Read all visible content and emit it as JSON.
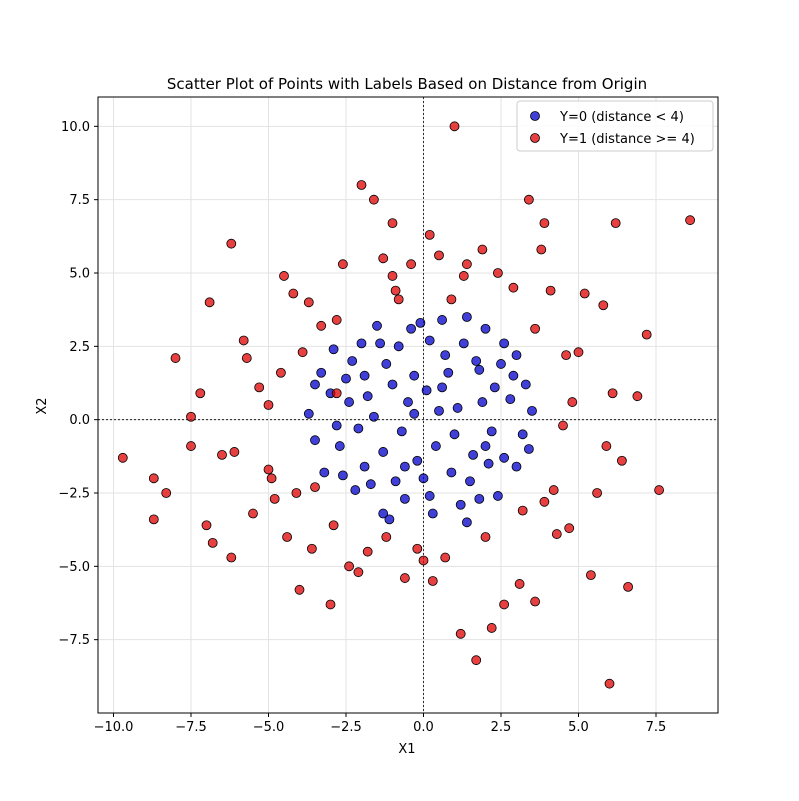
{
  "chart_data": {
    "type": "scatter",
    "title": "Scatter Plot of Points with Labels Based on Distance from Origin",
    "xlabel": "X1",
    "ylabel": "X2",
    "xlim": [
      -10.5,
      9.5
    ],
    "ylim": [
      -10,
      11
    ],
    "xticks": [
      -10.0,
      -7.5,
      -5.0,
      -2.5,
      0.0,
      2.5,
      5.0,
      7.5
    ],
    "xtick_labels": [
      "−10.0",
      "−7.5",
      "−5.0",
      "−2.5",
      "0.0",
      "2.5",
      "5.0",
      "7.5"
    ],
    "yticks": [
      -7.5,
      -5.0,
      -2.5,
      0.0,
      2.5,
      5.0,
      7.5,
      10.0
    ],
    "ytick_labels": [
      "−7.5",
      "−5.0",
      "−2.5",
      "0.0",
      "2.5",
      "5.0",
      "7.5",
      "10.0"
    ],
    "grid": true,
    "reference_lines": {
      "x": 0,
      "y": 0
    },
    "legend_position": "top-right",
    "series": [
      {
        "name": "Y=0 (distance < 4)",
        "color": "#0000cc",
        "points": [
          [
            -2.9,
            2.4
          ],
          [
            -3.5,
            1.2
          ],
          [
            -2.0,
            2.6
          ],
          [
            -1.5,
            3.2
          ],
          [
            -0.4,
            3.1
          ],
          [
            0.6,
            3.4
          ],
          [
            1.4,
            3.5
          ],
          [
            2.0,
            3.1
          ],
          [
            2.6,
            2.6
          ],
          [
            3.0,
            2.2
          ],
          [
            3.3,
            1.2
          ],
          [
            3.5,
            0.3
          ],
          [
            3.2,
            -0.5
          ],
          [
            3.0,
            -1.6
          ],
          [
            2.4,
            -2.6
          ],
          [
            1.8,
            -2.7
          ],
          [
            1.4,
            -3.5
          ],
          [
            0.3,
            -3.2
          ],
          [
            -0.6,
            -2.7
          ],
          [
            -1.3,
            -3.2
          ],
          [
            -2.2,
            -2.4
          ],
          [
            -3.2,
            -1.8
          ],
          [
            -3.5,
            -0.7
          ],
          [
            -3.7,
            0.2
          ],
          [
            -2.5,
            1.4
          ],
          [
            -1.8,
            0.8
          ],
          [
            -1.2,
            1.9
          ],
          [
            -0.8,
            2.5
          ],
          [
            -0.3,
            1.5
          ],
          [
            0.2,
            2.7
          ],
          [
            0.8,
            1.6
          ],
          [
            1.3,
            2.6
          ],
          [
            1.8,
            1.7
          ],
          [
            2.3,
            1.1
          ],
          [
            2.8,
            0.7
          ],
          [
            2.2,
            -0.4
          ],
          [
            1.6,
            -1.2
          ],
          [
            1.0,
            -0.5
          ],
          [
            0.5,
            0.3
          ],
          [
            0.1,
            1.0
          ],
          [
            -0.5,
            0.6
          ],
          [
            -1.0,
            1.2
          ],
          [
            -1.6,
            0.1
          ],
          [
            -2.1,
            -0.3
          ],
          [
            -2.7,
            -0.9
          ],
          [
            -1.9,
            -1.6
          ],
          [
            -1.3,
            -1.1
          ],
          [
            -0.7,
            -0.4
          ],
          [
            -0.2,
            -1.4
          ],
          [
            0.4,
            -0.9
          ],
          [
            0.9,
            -1.8
          ],
          [
            1.5,
            -2.1
          ],
          [
            2.1,
            -1.5
          ],
          [
            2.6,
            -1.3
          ],
          [
            -0.9,
            -2.1
          ],
          [
            -1.7,
            -2.2
          ],
          [
            -2.4,
            0.6
          ],
          [
            -3.0,
            0.9
          ],
          [
            -2.3,
            2.0
          ],
          [
            1.1,
            0.4
          ],
          [
            1.9,
            0.6
          ],
          [
            2.5,
            1.9
          ],
          [
            0.0,
            -2.0
          ],
          [
            -0.3,
            0.2
          ],
          [
            0.7,
            2.2
          ],
          [
            -1.4,
            2.6
          ],
          [
            -2.8,
            -0.2
          ],
          [
            3.4,
            -1.0
          ],
          [
            2.9,
            1.5
          ],
          [
            -3.3,
            1.6
          ],
          [
            0.2,
            -2.6
          ],
          [
            1.2,
            -2.9
          ],
          [
            -1.1,
            -3.4
          ],
          [
            -0.1,
            3.3
          ],
          [
            1.7,
            2.0
          ],
          [
            -2.6,
            -1.9
          ],
          [
            2.0,
            -0.9
          ],
          [
            -0.6,
            -1.6
          ],
          [
            0.6,
            1.1
          ],
          [
            -1.9,
            1.5
          ]
        ]
      },
      {
        "name": "Y=1 (distance >= 4)",
        "color": "#dd0000",
        "points": [
          [
            -9.7,
            -1.3
          ],
          [
            -8.7,
            -3.4
          ],
          [
            -8.3,
            -2.5
          ],
          [
            -8.0,
            2.1
          ],
          [
            -7.5,
            -0.9
          ],
          [
            -7.2,
            0.9
          ],
          [
            -7.0,
            -3.6
          ],
          [
            -6.9,
            4.0
          ],
          [
            -6.5,
            -1.2
          ],
          [
            -6.2,
            -4.7
          ],
          [
            -6.2,
            6.0
          ],
          [
            -5.8,
            2.7
          ],
          [
            -5.5,
            -3.2
          ],
          [
            -5.3,
            1.1
          ],
          [
            -5.0,
            -1.7
          ],
          [
            -4.8,
            -2.7
          ],
          [
            -4.6,
            1.6
          ],
          [
            -4.4,
            -4.0
          ],
          [
            -4.2,
            4.3
          ],
          [
            -4.0,
            -5.8
          ],
          [
            -3.9,
            2.3
          ],
          [
            -3.6,
            -4.4
          ],
          [
            -3.3,
            3.2
          ],
          [
            -3.0,
            -6.3
          ],
          [
            -2.8,
            0.9
          ],
          [
            -2.6,
            5.3
          ],
          [
            -2.4,
            -5.0
          ],
          [
            -2.0,
            8.0
          ],
          [
            -1.8,
            -4.5
          ],
          [
            -1.6,
            7.5
          ],
          [
            -1.3,
            5.5
          ],
          [
            -1.2,
            -4.0
          ],
          [
            -1.0,
            6.7
          ],
          [
            -0.9,
            4.4
          ],
          [
            -0.6,
            -5.4
          ],
          [
            -0.4,
            5.3
          ],
          [
            -0.2,
            -4.4
          ],
          [
            0.2,
            6.3
          ],
          [
            0.3,
            -5.5
          ],
          [
            0.5,
            5.6
          ],
          [
            0.7,
            -4.7
          ],
          [
            0.9,
            4.1
          ],
          [
            1.0,
            10.0
          ],
          [
            1.2,
            -7.3
          ],
          [
            1.4,
            5.3
          ],
          [
            1.7,
            -8.2
          ],
          [
            1.9,
            5.8
          ],
          [
            2.2,
            -7.1
          ],
          [
            2.4,
            5.0
          ],
          [
            2.6,
            -6.3
          ],
          [
            2.9,
            4.5
          ],
          [
            3.1,
            -5.6
          ],
          [
            3.4,
            7.5
          ],
          [
            3.6,
            -6.2
          ],
          [
            3.8,
            5.8
          ],
          [
            3.9,
            -2.8
          ],
          [
            4.1,
            4.4
          ],
          [
            4.3,
            -3.9
          ],
          [
            4.6,
            2.2
          ],
          [
            4.8,
            0.6
          ],
          [
            4.7,
            -3.7
          ],
          [
            5.2,
            4.3
          ],
          [
            5.4,
            -5.3
          ],
          [
            5.6,
            -2.5
          ],
          [
            5.8,
            3.9
          ],
          [
            6.0,
            -9.0
          ],
          [
            6.2,
            6.7
          ],
          [
            6.4,
            -1.4
          ],
          [
            6.6,
            -5.7
          ],
          [
            7.2,
            2.9
          ],
          [
            7.6,
            -2.4
          ],
          [
            8.6,
            6.8
          ],
          [
            -8.7,
            -2.0
          ],
          [
            -7.5,
            0.1
          ],
          [
            -6.1,
            -1.1
          ],
          [
            -5.7,
            2.1
          ],
          [
            -4.1,
            -2.5
          ],
          [
            -3.7,
            4.0
          ],
          [
            -2.9,
            -3.6
          ],
          [
            3.9,
            6.7
          ],
          [
            4.5,
            -0.2
          ],
          [
            5.0,
            2.3
          ],
          [
            5.9,
            -0.9
          ],
          [
            6.9,
            0.8
          ],
          [
            -5.0,
            0.5
          ],
          [
            0.0,
            -4.8
          ],
          [
            2.0,
            -4.0
          ],
          [
            -1.0,
            4.9
          ],
          [
            -3.5,
            -2.3
          ],
          [
            3.6,
            3.1
          ],
          [
            -6.8,
            -4.2
          ],
          [
            -4.5,
            4.9
          ],
          [
            6.1,
            0.9
          ],
          [
            -2.1,
            -5.2
          ],
          [
            1.3,
            4.9
          ],
          [
            -0.8,
            4.1
          ],
          [
            3.2,
            -3.1
          ],
          [
            -4.9,
            -2.0
          ],
          [
            4.2,
            -2.4
          ],
          [
            -2.8,
            3.4
          ]
        ]
      }
    ]
  }
}
